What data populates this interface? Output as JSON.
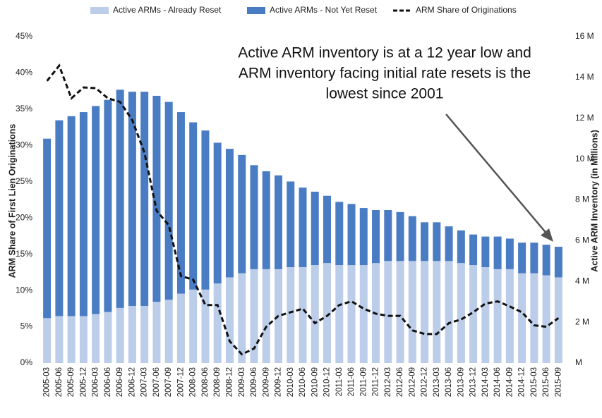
{
  "chart_data": {
    "type": "bar",
    "annotation": [
      "Active ARM inventory is at a 12 year low and",
      "ARM inventory facing initial rate resets is the",
      "lowest since 2001"
    ],
    "y_label": "ARM Share of First Lien Originations",
    "y2_label": "Active ARM Inventory (in Millions)",
    "categories": [
      "2005-03",
      "2005-06",
      "2005-09",
      "2005-12",
      "2006-03",
      "2006-06",
      "2006-09",
      "2006-12",
      "2007-03",
      "2007-06",
      "2007-09",
      "2007-12",
      "2008-03",
      "2008-06",
      "2008-09",
      "2008-12",
      "2009-03",
      "2009-06",
      "2009-09",
      "2009-12",
      "2010-03",
      "2010-06",
      "2010-09",
      "2010-12",
      "2011-03",
      "2011-06",
      "2011-09",
      "2011-12",
      "2012-03",
      "2012-06",
      "2012-09",
      "2012-12",
      "2013-03",
      "2013-06",
      "2013-09",
      "2013-12",
      "2014-03",
      "2014-06",
      "2014-09",
      "2014-12",
      "2015-03",
      "2015-06",
      "2015-09"
    ],
    "series": [
      {
        "name": "Active ARMs - Already Reset",
        "color": "#bccde9",
        "axis": "y2",
        "stacked": true,
        "values": [
          2.2,
          2.3,
          2.3,
          2.3,
          2.4,
          2.5,
          2.7,
          2.8,
          2.8,
          3.0,
          3.1,
          3.4,
          3.6,
          3.6,
          3.9,
          4.2,
          4.4,
          4.6,
          4.6,
          4.6,
          4.7,
          4.7,
          4.8,
          4.9,
          4.8,
          4.8,
          4.8,
          4.9,
          5.0,
          5.0,
          5.0,
          5.0,
          5.0,
          5.0,
          4.9,
          4.8,
          4.7,
          4.6,
          4.6,
          4.4,
          4.4,
          4.3,
          4.2
        ]
      },
      {
        "name": "Active ARMs - Not Yet Reset",
        "color": "#4a7cc4",
        "axis": "y2",
        "stacked": true,
        "values": [
          8.8,
          9.6,
          9.8,
          10.0,
          10.2,
          10.4,
          10.7,
          10.5,
          10.5,
          10.1,
          9.7,
          8.9,
          8.2,
          7.8,
          6.9,
          6.3,
          5.8,
          5.1,
          4.8,
          4.6,
          4.2,
          3.9,
          3.6,
          3.3,
          3.1,
          3.0,
          2.8,
          2.6,
          2.5,
          2.4,
          2.2,
          1.9,
          1.9,
          1.7,
          1.6,
          1.5,
          1.5,
          1.6,
          1.5,
          1.5,
          1.5,
          1.5,
          1.5
        ]
      },
      {
        "name": "ARM Share of Originations",
        "color": "#111111",
        "type": "line",
        "dashed": true,
        "values": [
          38.9,
          41.0,
          36.5,
          38.0,
          37.9,
          36.5,
          36.0,
          33.5,
          29,
          21,
          19,
          12,
          11.5,
          8,
          8,
          3,
          1.2,
          2,
          5,
          6.5,
          7,
          7.5,
          5.5,
          6.5,
          8,
          8.5,
          7.5,
          6.8,
          6.5,
          6.5,
          4.5,
          4,
          4,
          5.5,
          6,
          7,
          8.2,
          8.5,
          7.8,
          7,
          5.2,
          5,
          6.2
        ]
      }
    ],
    "ylim": [
      0,
      45
    ],
    "yticks": [
      {
        "value": 0,
        "label": "0%"
      },
      {
        "value": 5,
        "label": "5%"
      },
      {
        "value": 10,
        "label": "10%"
      },
      {
        "value": 15,
        "label": "15%"
      },
      {
        "value": 20,
        "label": "20%"
      },
      {
        "value": 25,
        "label": "25%"
      },
      {
        "value": 30,
        "label": "30%"
      },
      {
        "value": 35,
        "label": "35%"
      },
      {
        "value": 40,
        "label": "40%"
      },
      {
        "value": 45,
        "label": "45%"
      }
    ],
    "y2lim": [
      0,
      16
    ],
    "y2ticks": [
      {
        "value": 0,
        "label": "M"
      },
      {
        "value": 2,
        "label": "2 M"
      },
      {
        "value": 4,
        "label": "4 M"
      },
      {
        "value": 6,
        "label": "6 M"
      },
      {
        "value": 8,
        "label": "8 M"
      },
      {
        "value": 10,
        "label": "10 M"
      },
      {
        "value": 12,
        "label": "12 M"
      },
      {
        "value": 14,
        "label": "14 M"
      },
      {
        "value": 16,
        "label": "16 M"
      }
    ],
    "legend": "top"
  }
}
